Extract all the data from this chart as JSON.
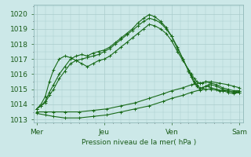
{
  "bg_color": "#cce8e8",
  "grid_color": "#aacccc",
  "line_color": "#1a6b1a",
  "marker_color": "#1a6b1a",
  "title": "Pression niveau de la mer( hPa )",
  "x_ticks_labels": [
    "Mer",
    "Jeu",
    "Ven",
    "Sam"
  ],
  "x_ticks_pos": [
    0,
    48,
    96,
    144
  ],
  "ylim": [
    1012.8,
    1020.6
  ],
  "xlim": [
    -2,
    147
  ],
  "yticks": [
    1013,
    1014,
    1015,
    1016,
    1017,
    1018,
    1019,
    1020
  ],
  "series": [
    {
      "x": [
        0,
        3,
        6,
        9,
        12,
        16,
        20,
        24,
        28,
        32,
        36,
        40,
        44,
        48,
        52,
        56,
        60,
        64,
        68,
        72,
        76,
        80,
        84,
        88,
        92,
        96,
        100,
        104,
        108,
        110,
        112,
        114,
        116,
        118,
        120,
        122,
        124,
        128,
        132,
        136,
        140,
        144
      ],
      "y": [
        1013.7,
        1013.9,
        1014.2,
        1014.8,
        1015.3,
        1016.0,
        1016.5,
        1017.0,
        1017.2,
        1017.3,
        1017.2,
        1017.4,
        1017.5,
        1017.6,
        1017.8,
        1018.1,
        1018.4,
        1018.7,
        1019.0,
        1019.4,
        1019.7,
        1019.95,
        1019.8,
        1019.5,
        1019.1,
        1018.5,
        1017.8,
        1017.0,
        1016.2,
        1015.8,
        1015.4,
        1015.2,
        1015.0,
        1015.1,
        1015.2,
        1015.3,
        1015.3,
        1015.2,
        1015.0,
        1014.9,
        1014.8,
        1014.9
      ]
    },
    {
      "x": [
        0,
        3,
        6,
        9,
        12,
        16,
        20,
        24,
        28,
        32,
        36,
        40,
        44,
        48,
        52,
        56,
        60,
        64,
        68,
        72,
        76,
        80,
        84,
        88,
        92,
        96,
        100,
        104,
        108,
        110,
        112,
        114,
        116,
        118,
        120,
        122,
        124,
        128,
        132,
        136,
        140,
        144
      ],
      "y": [
        1013.7,
        1013.9,
        1014.1,
        1014.6,
        1015.0,
        1015.7,
        1016.2,
        1016.7,
        1016.9,
        1017.0,
        1017.1,
        1017.2,
        1017.3,
        1017.5,
        1017.7,
        1018.0,
        1018.3,
        1018.6,
        1018.9,
        1019.2,
        1019.5,
        1019.7,
        1019.6,
        1019.4,
        1019.0,
        1018.5,
        1017.7,
        1017.0,
        1016.2,
        1015.9,
        1015.5,
        1015.3,
        1015.1,
        1015.1,
        1015.2,
        1015.2,
        1015.1,
        1015.0,
        1014.9,
        1014.8,
        1014.7,
        1014.8
      ]
    },
    {
      "x": [
        0,
        3,
        6,
        9,
        12,
        16,
        20,
        24,
        28,
        32,
        36,
        40,
        44,
        48,
        52,
        56,
        60,
        64,
        68,
        72,
        76,
        80,
        84,
        88,
        92,
        96,
        100,
        104,
        108,
        110,
        112,
        114,
        116,
        118,
        120,
        124,
        128,
        132,
        136,
        140,
        144
      ],
      "y": [
        1013.7,
        1014.0,
        1014.5,
        1015.5,
        1016.3,
        1017.0,
        1017.2,
        1017.1,
        1016.9,
        1016.7,
        1016.5,
        1016.7,
        1016.9,
        1017.0,
        1017.2,
        1017.5,
        1017.8,
        1018.1,
        1018.4,
        1018.7,
        1019.0,
        1019.3,
        1019.2,
        1019.0,
        1018.7,
        1018.2,
        1017.5,
        1016.9,
        1016.3,
        1016.0,
        1015.7,
        1015.5,
        1015.4,
        1015.4,
        1015.5,
        1015.4,
        1015.3,
        1015.1,
        1015.0,
        1014.9,
        1014.9
      ]
    },
    {
      "x": [
        0,
        6,
        12,
        20,
        30,
        40,
        50,
        60,
        70,
        80,
        90,
        96,
        104,
        110,
        116,
        120,
        124,
        130,
        136,
        140,
        144
      ],
      "y": [
        1013.5,
        1013.5,
        1013.5,
        1013.5,
        1013.5,
        1013.6,
        1013.7,
        1013.9,
        1014.1,
        1014.4,
        1014.7,
        1014.9,
        1015.1,
        1015.3,
        1015.4,
        1015.5,
        1015.5,
        1015.4,
        1015.3,
        1015.2,
        1015.1
      ]
    },
    {
      "x": [
        0,
        6,
        12,
        20,
        30,
        40,
        50,
        60,
        70,
        80,
        90,
        96,
        104,
        110,
        116,
        120,
        124,
        130,
        136,
        140,
        144
      ],
      "y": [
        1013.4,
        1013.3,
        1013.2,
        1013.1,
        1013.1,
        1013.2,
        1013.3,
        1013.5,
        1013.7,
        1013.9,
        1014.2,
        1014.4,
        1014.6,
        1014.8,
        1014.95,
        1015.0,
        1015.0,
        1014.9,
        1014.9,
        1014.8,
        1014.8
      ]
    }
  ]
}
